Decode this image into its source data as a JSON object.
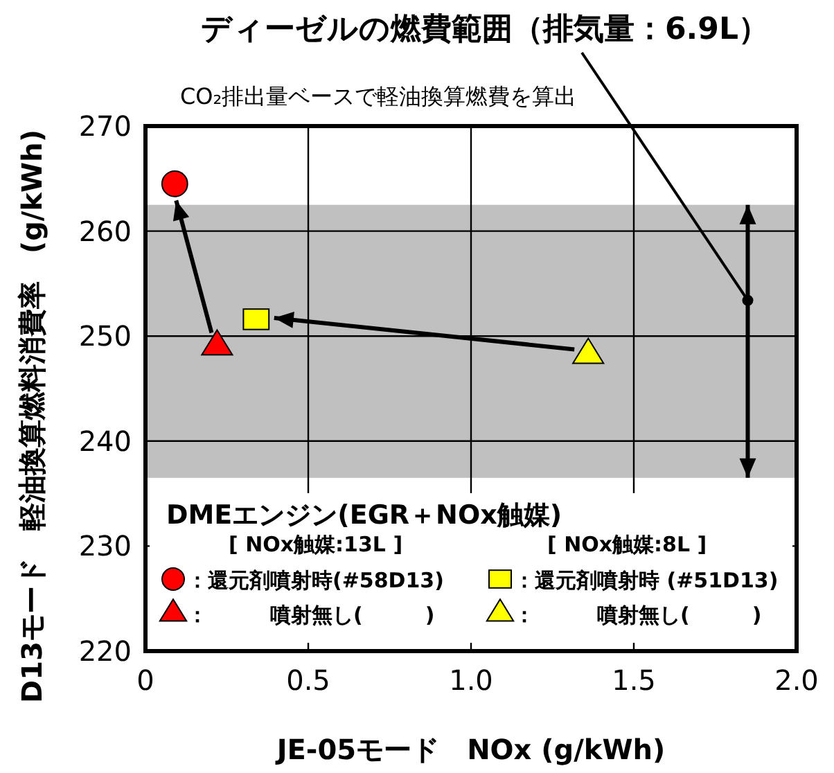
{
  "chart_data": {
    "type": "scatter",
    "annotations": [
      {
        "text": "ディーゼルの燃費範囲（排気量：6.9L）",
        "x": 1.85,
        "y": 253.4
      },
      "CO₂排出量ベースで軽油換算燃費を算出",
      "[ NOx触媒:13L ]",
      "[ NOx触媒:8L ]"
    ],
    "xlabel": "JE-05モード　NOx (g/kWh)",
    "ylabel": "D13モード　軽油換算燃料消費率　(g/kWh)",
    "legend_title": "DMEエンジン(EGR＋NOx触媒)",
    "series": [
      {
        "name": "：還元剤噴射時(#58D13)",
        "color": "#ff0000",
        "marker": "circle",
        "x": [
          0.09
        ],
        "values": [
          264.5
        ]
      },
      {
        "name": "：　　　噴射無し(　　　)",
        "color": "#ff0000",
        "marker": "triangle",
        "x": [
          0.22
        ],
        "values": [
          249
        ]
      },
      {
        "name": "：還元剤噴射時 (#51D13)",
        "color": "#ffff00",
        "marker": "square",
        "x": [
          0.34
        ],
        "values": [
          251.6
        ]
      },
      {
        "name": "：　　　噴射無し(　　　)",
        "color": "#ffff00",
        "marker": "triangle",
        "x": [
          1.36
        ],
        "values": [
          248.2
        ]
      }
    ],
    "bands": [
      {
        "axis": "y",
        "from": 236.5,
        "to": 262.5,
        "color": "#c0c0c0"
      }
    ],
    "xlim": [
      0,
      2
    ],
    "ylim": [
      220,
      270
    ],
    "xticks": [
      0,
      {
        "value": 0.5,
        "label": "0.5"
      },
      {
        "value": 1,
        "label": "1.0"
      },
      {
        "value": 1.5,
        "label": "1.5"
      },
      {
        "value": 2,
        "label": "2.0"
      }
    ],
    "yticks": [
      220,
      230,
      240,
      250,
      260,
      270
    ],
    "grid": true,
    "legend": "bottom"
  }
}
